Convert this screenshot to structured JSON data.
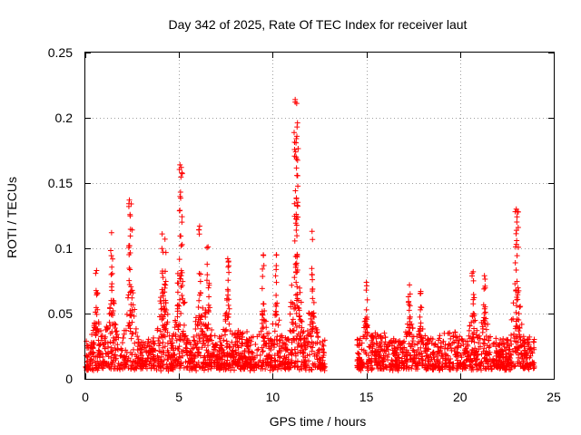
{
  "chart_data": {
    "type": "scatter",
    "title": "Day 342 of 2025, Rate Of TEC Index for receiver laut",
    "xlabel": "GPS time / hours",
    "ylabel": "ROTI / TECUs",
    "xlim": [
      0,
      25
    ],
    "ylim": [
      0,
      0.25
    ],
    "xticks": [
      "0",
      "5",
      "10",
      "15",
      "20",
      "25"
    ],
    "yticks": [
      "0",
      "0.05",
      "0.1",
      "0.15",
      "0.2",
      "0.25"
    ],
    "grid": true,
    "marker": "+",
    "color": "#ff0000",
    "data_gap_hours": [
      12.8,
      14.5
    ],
    "series": [
      {
        "name": "ROTI",
        "notable_peaks": [
          {
            "x": 0.6,
            "y": 0.083
          },
          {
            "x": 1.4,
            "y": 0.112
          },
          {
            "x": 2.35,
            "y": 0.137
          },
          {
            "x": 2.45,
            "y": 0.134
          },
          {
            "x": 4.1,
            "y": 0.111
          },
          {
            "x": 4.25,
            "y": 0.107
          },
          {
            "x": 5.05,
            "y": 0.164
          },
          {
            "x": 5.12,
            "y": 0.162
          },
          {
            "x": 6.1,
            "y": 0.117
          },
          {
            "x": 6.55,
            "y": 0.101
          },
          {
            "x": 7.6,
            "y": 0.092
          },
          {
            "x": 9.5,
            "y": 0.095
          },
          {
            "x": 10.2,
            "y": 0.095
          },
          {
            "x": 11.2,
            "y": 0.214
          },
          {
            "x": 11.28,
            "y": 0.211
          },
          {
            "x": 11.3,
            "y": 0.193
          },
          {
            "x": 11.25,
            "y": 0.17
          },
          {
            "x": 12.1,
            "y": 0.113
          },
          {
            "x": 15.0,
            "y": 0.074
          },
          {
            "x": 17.3,
            "y": 0.072
          },
          {
            "x": 17.9,
            "y": 0.067
          },
          {
            "x": 20.7,
            "y": 0.082
          },
          {
            "x": 21.3,
            "y": 0.079
          },
          {
            "x": 23.0,
            "y": 0.13
          },
          {
            "x": 23.05,
            "y": 0.128
          }
        ]
      }
    ]
  }
}
